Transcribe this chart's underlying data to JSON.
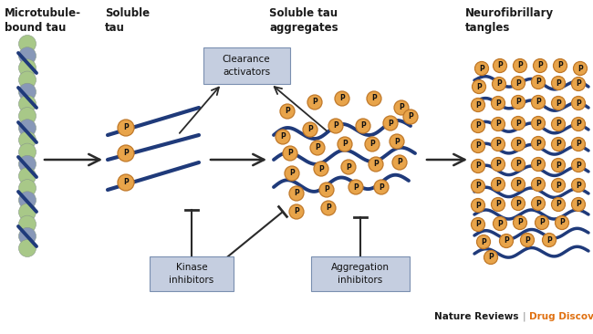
{
  "bg_color": "#ffffff",
  "text_color": "#1a1a1a",
  "dark_blue": "#1f3a7a",
  "orange": "#e8a44a",
  "orange_border": "#c07828",
  "arrow_color": "#2a2a2a",
  "box_bg": "#c5cee0",
  "box_border": "#7a8fb0",
  "mt_green": "#a8c888",
  "mt_blue_gray": "#8898b8",
  "nature_color": "#1a1a1a",
  "drug_color": "#e07010",
  "labels": {
    "microtubule": "Microtubule-\nbound tau",
    "soluble": "Soluble\ntau",
    "aggregates": "Soluble tau\naggregates",
    "tangles": "Neurofibrillary\ntangles",
    "clearance": "Clearance\nactivators",
    "kinase": "Kinase\ninhibitors",
    "aggregation": "Aggregation\ninhibitors"
  },
  "fig_w": 6.5,
  "fig_h": 3.66,
  "dpi": 100
}
